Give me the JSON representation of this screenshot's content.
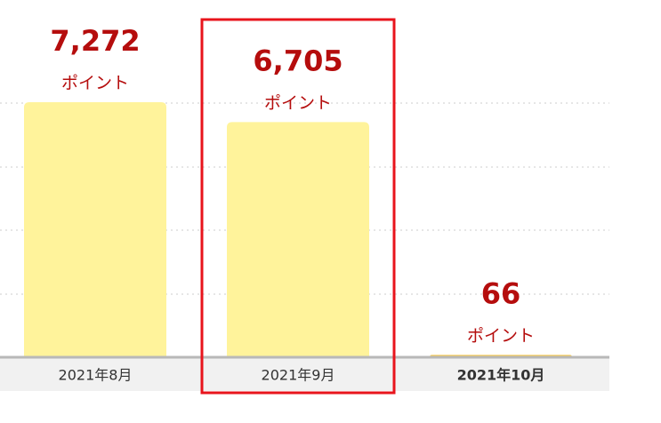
{
  "chart_data": {
    "type": "bar",
    "categories": [
      "2021年8月",
      "2021年9月",
      "2021年10月"
    ],
    "values": [
      7272,
      6705,
      66
    ],
    "value_labels": [
      "7,272",
      "6,705",
      "66"
    ],
    "unit_label": "ポイント",
    "colors": [
      "#fff39b",
      "#fff39b",
      "#f5c74a"
    ],
    "ylim": [
      0,
      8000
    ]
  }
}
